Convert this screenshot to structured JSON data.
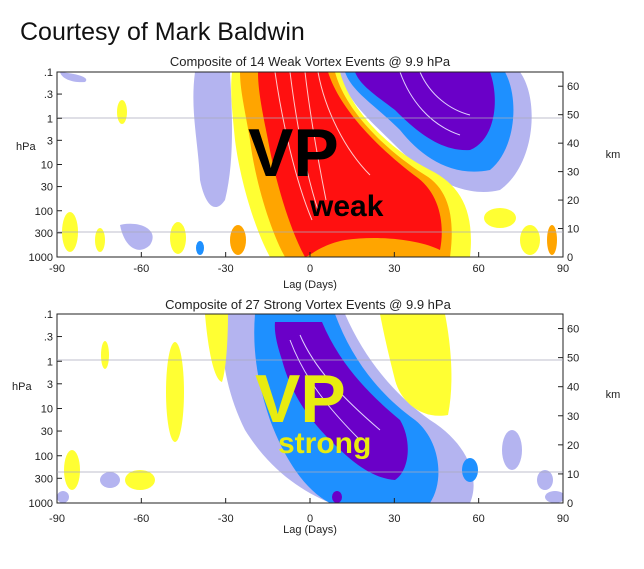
{
  "credit": "Courtesy of  Mark Baldwin",
  "chart_data": [
    {
      "type": "heatmap",
      "title": "Composite of 14 Weak Vortex Events @ 9.9 hPa",
      "xlabel": "Lag (Days)",
      "ylabel_left": "hPa",
      "ylabel_right": "km",
      "x_ticks": [
        "-90",
        "-60",
        "-30",
        "0",
        "30",
        "60",
        "90"
      ],
      "xlim": [
        -90,
        90
      ],
      "y_left_ticks": [
        ".1",
        ".3",
        "1",
        "3",
        "10",
        "30",
        "100",
        "300",
        "1000"
      ],
      "y_right_ticks": [
        "60",
        "50",
        "40",
        "30",
        "20",
        "10",
        "0"
      ],
      "overlay_text": [
        "VP",
        "weak"
      ],
      "overlay_color": "#000000"
    },
    {
      "type": "heatmap",
      "title": "Composite of 27 Strong Vortex Events @ 9.9 hPa",
      "xlabel": "Lag (Days)",
      "ylabel_left": "hPa",
      "ylabel_right": "km",
      "x_ticks": [
        "-90",
        "-60",
        "-30",
        "0",
        "30",
        "60",
        "90"
      ],
      "xlim": [
        -90,
        90
      ],
      "y_left_ticks": [
        ".1",
        ".3",
        "1",
        "3",
        "10",
        "30",
        "100",
        "300",
        "1000"
      ],
      "y_right_ticks": [
        "60",
        "50",
        "40",
        "30",
        "20",
        "10",
        "0"
      ],
      "overlay_text": [
        "VP",
        "strong"
      ],
      "overlay_color": "#e8ec10"
    }
  ],
  "palette": {
    "yellow": "#ffff33",
    "orange": "#ffa500",
    "red": "#ff1010",
    "lavender": "#b4b4f0",
    "blue": "#1e90ff",
    "purple": "#6a00c8"
  }
}
